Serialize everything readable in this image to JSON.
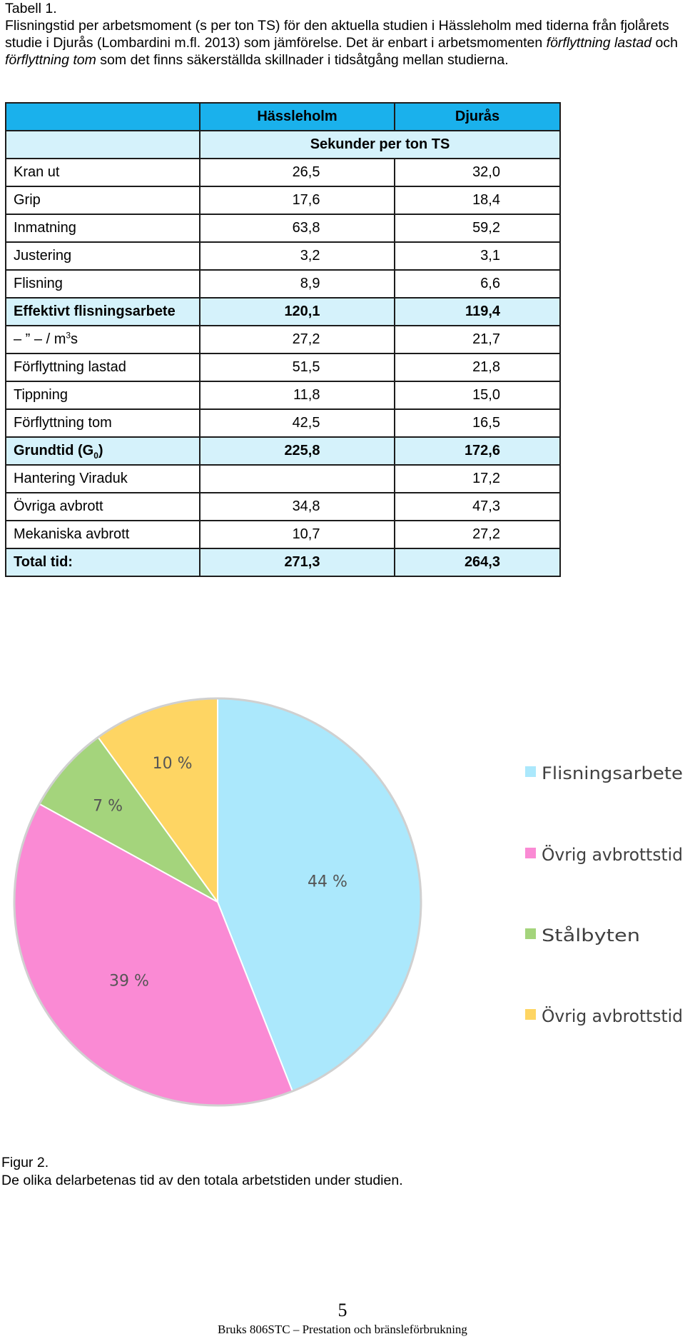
{
  "caption": {
    "label": "Tabell 1.",
    "text_1": "Flisningstid per arbetsmoment (s per ton TS) för den aktuella studien i Hässleholm med tiderna från fjolårets studie i Djurås (Lombardini m.fl. 2013) som jämförelse. Det är enbart i arbetsmomenten ",
    "italic_1": "förflyttning lastad",
    "text_2": " och ",
    "italic_2": "förflyttning tom",
    "text_3": " som det finns säkerställda skillnader i tidsåtgång mellan studierna."
  },
  "table": {
    "col_hassleholm": "Hässleholm",
    "col_djuras": "Djurås",
    "unit": "Sekunder per ton TS",
    "rows": [
      {
        "label": "Kran ut",
        "h": "26,5",
        "d": "32,0"
      },
      {
        "label": "Grip",
        "h": "17,6",
        "d": "18,4"
      },
      {
        "label": "Inmatning",
        "h": "63,8",
        "d": "59,2"
      },
      {
        "label": "Justering",
        "h": "3,2",
        "d": "3,1"
      },
      {
        "label": "Flisning",
        "h": "8,9",
        "d": "6,6"
      },
      {
        "label": "Effektivt flisningsarbete",
        "h": "120,1",
        "d": "119,4"
      },
      {
        "label": "– ” – / m",
        "label_sup": "3",
        "label_tail": "s",
        "h": "27,2",
        "d": "21,7"
      },
      {
        "label": "Förflyttning lastad",
        "h": "51,5",
        "d": "21,8"
      },
      {
        "label": "Tippning",
        "h": "11,8",
        "d": "15,0"
      },
      {
        "label": "Förflyttning tom",
        "h": "42,5",
        "d": "16,5"
      },
      {
        "label": "Grundtid (G",
        "label_sub": "0",
        "label_tail": ")",
        "h": "225,8",
        "d": "172,6"
      },
      {
        "label": "Hantering Viraduk",
        "h": "",
        "d": "17,2"
      },
      {
        "label": "Övriga avbrott",
        "h": "34,8",
        "d": "47,3"
      },
      {
        "label": "Mekaniska avbrott",
        "h": "10,7",
        "d": "27,2"
      },
      {
        "label": "Total tid:",
        "h": "271,3",
        "d": "264,3"
      }
    ]
  },
  "chart_data": {
    "type": "pie",
    "title": "",
    "slices": [
      {
        "label": "Flisningsarbete",
        "value": 44,
        "display": "44 %",
        "color": "#abe8fc"
      },
      {
        "label": "Övrig avbrottstid",
        "value": 39,
        "display": "39 %",
        "color": "#fa8ad4"
      },
      {
        "label": "Stålbyten",
        "value": 7,
        "display": "7 %",
        "color": "#a4d47c"
      },
      {
        "label": "Övrig avbrottstid",
        "value": 10,
        "display": "10 %",
        "color": "#fed563"
      }
    ],
    "legend": "right"
  },
  "figure": {
    "label": "Figur 2.",
    "text": "De olika delarbetenas tid av den totala arbetstiden under studien."
  },
  "page_number": "5",
  "footer": "Bruks 806STC – Prestation och bränsleförbrukning"
}
